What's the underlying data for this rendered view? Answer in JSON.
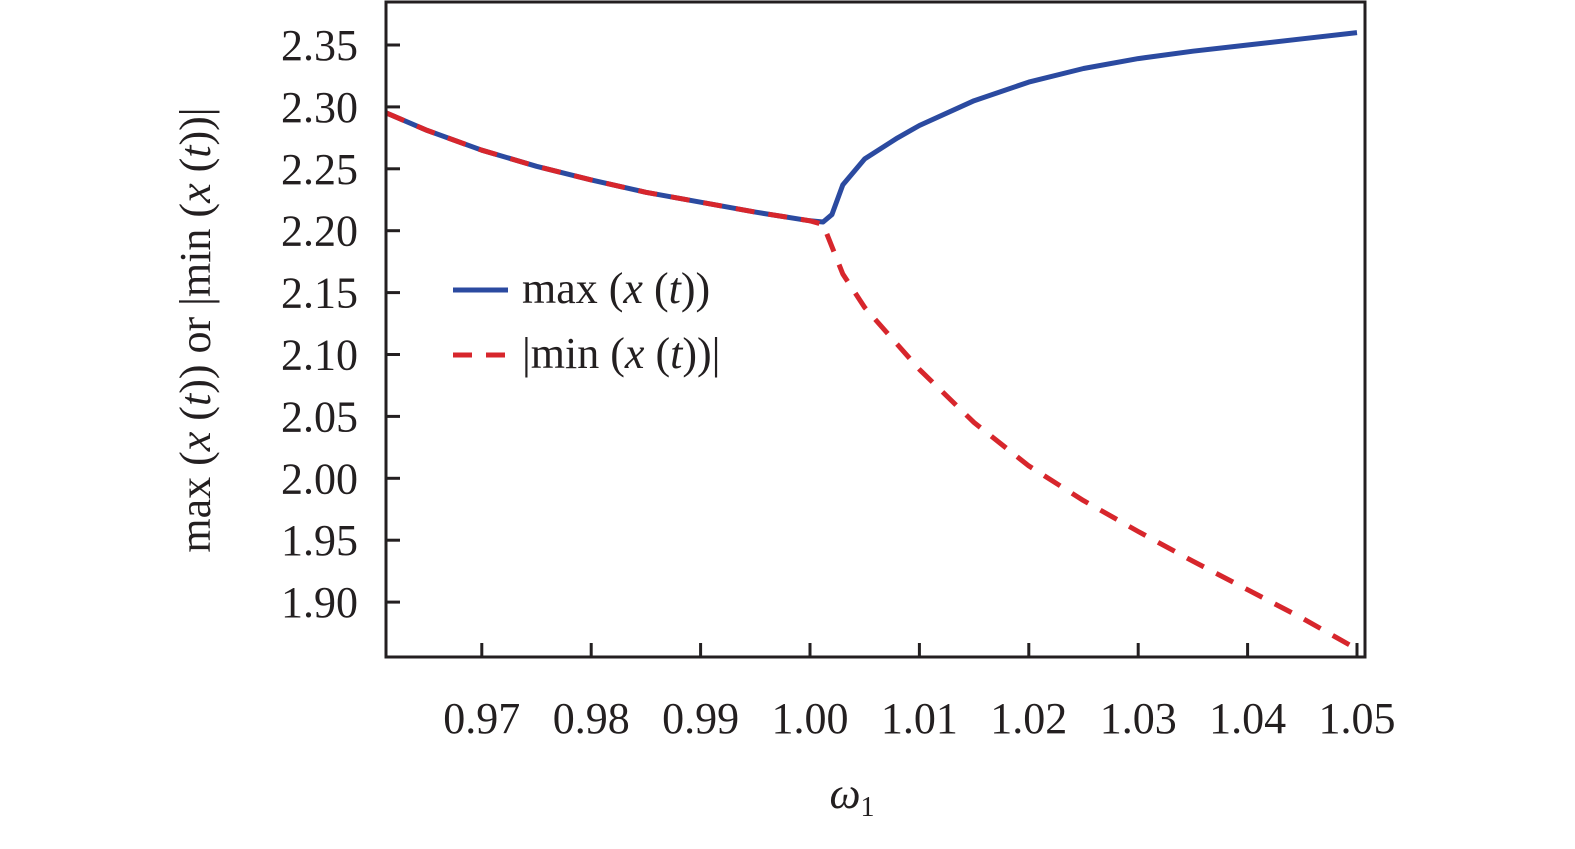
{
  "chart_data": {
    "type": "line",
    "title": "",
    "xlabel": "ω₁",
    "ylabel": "max (x (t)) or |min (x (t))|",
    "xlim": [
      0.9613,
      1.0508
    ],
    "ylim": [
      1.855,
      2.385
    ],
    "grid": false,
    "legend_position": "center-left (inside plot)",
    "x_ticks": [
      "0.97",
      "0.98",
      "0.99",
      "1.00",
      "1.01",
      "1.02",
      "1.03",
      "1.04",
      "1.05"
    ],
    "y_ticks": [
      "2.35",
      "2.30",
      "2.25",
      "2.20",
      "2.15",
      "2.10",
      "2.05",
      "2.00",
      "1.95",
      "1.90"
    ],
    "series": [
      {
        "name": "max (x (t))",
        "style": "solid",
        "color": "#2b4aa0",
        "x": [
          0.9613,
          0.965,
          0.97,
          0.975,
          0.98,
          0.985,
          0.99,
          0.995,
          1.0,
          1.0012,
          1.002,
          1.003,
          1.005,
          1.008,
          1.01,
          1.015,
          1.02,
          1.025,
          1.03,
          1.035,
          1.04,
          1.045,
          1.05
        ],
        "y": [
          2.295,
          2.281,
          2.265,
          2.252,
          2.241,
          2.231,
          2.223,
          2.215,
          2.208,
          2.207,
          2.213,
          2.237,
          2.258,
          2.275,
          2.285,
          2.305,
          2.32,
          2.331,
          2.339,
          2.345,
          2.35,
          2.355,
          2.36
        ]
      },
      {
        "name": "|min (x (t))|",
        "style": "dashed",
        "color": "#d7262c",
        "x": [
          0.9613,
          0.965,
          0.97,
          0.975,
          0.98,
          0.985,
          0.99,
          0.995,
          1.0,
          1.0012,
          1.003,
          1.005,
          1.008,
          1.01,
          1.015,
          1.02,
          1.025,
          1.03,
          1.035,
          1.04,
          1.045,
          1.05
        ],
        "y": [
          2.295,
          2.281,
          2.265,
          2.252,
          2.241,
          2.231,
          2.223,
          2.215,
          2.208,
          2.205,
          2.165,
          2.138,
          2.108,
          2.088,
          2.045,
          2.01,
          1.982,
          1.957,
          1.933,
          1.91,
          1.887,
          1.862
        ]
      }
    ]
  },
  "axes": {
    "x_title": "ω",
    "x_title_sub": "1",
    "y_title_parts": [
      "max (",
      "x",
      " (",
      "t",
      ")) or |min (",
      "x",
      " (",
      "t",
      "))|"
    ]
  },
  "legend": {
    "items": [
      {
        "label_parts": [
          "max (",
          "x",
          " (",
          "t",
          "))"
        ],
        "color": "#2b4aa0",
        "style": "solid"
      },
      {
        "label_parts": [
          "|min (",
          "x",
          " (",
          "t",
          "))|"
        ],
        "color": "#d7262c",
        "style": "dashed"
      }
    ]
  },
  "colors": {
    "axis": "#231f20",
    "max_series": "#2b4aa0",
    "min_series": "#d7262c",
    "background": "#ffffff"
  }
}
